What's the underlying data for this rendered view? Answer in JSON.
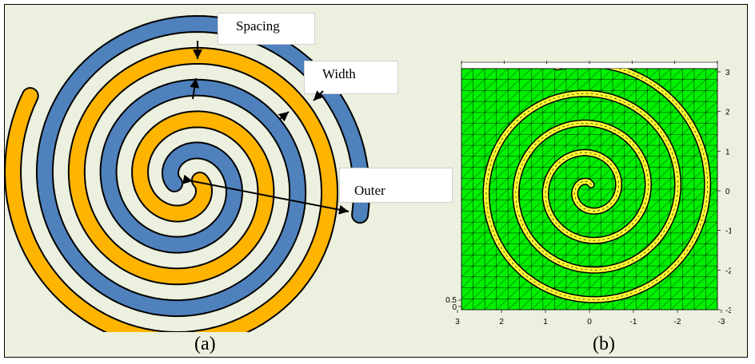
{
  "left_panel": {
    "caption": "(a)",
    "labels": {
      "spacing": "Spacing",
      "width": "Width",
      "outer": "Outer"
    },
    "colors": {
      "orange": "#FFB400",
      "blue": "#4F81BD"
    }
  },
  "right_panel": {
    "caption": "(b)",
    "mesh_color": "#00F000",
    "coil_color": "#FFFF33",
    "x_ticks": [
      "3",
      "2",
      "1",
      "0",
      "-1",
      "-2",
      "-3"
    ],
    "y_ticks": [
      "3",
      "2",
      "1",
      "0",
      "-1",
      "-2",
      "-3"
    ],
    "extra_ticks": [
      "0.5",
      "0"
    ]
  },
  "colors": {
    "background": "#EBF1DE",
    "border": "#000000"
  }
}
